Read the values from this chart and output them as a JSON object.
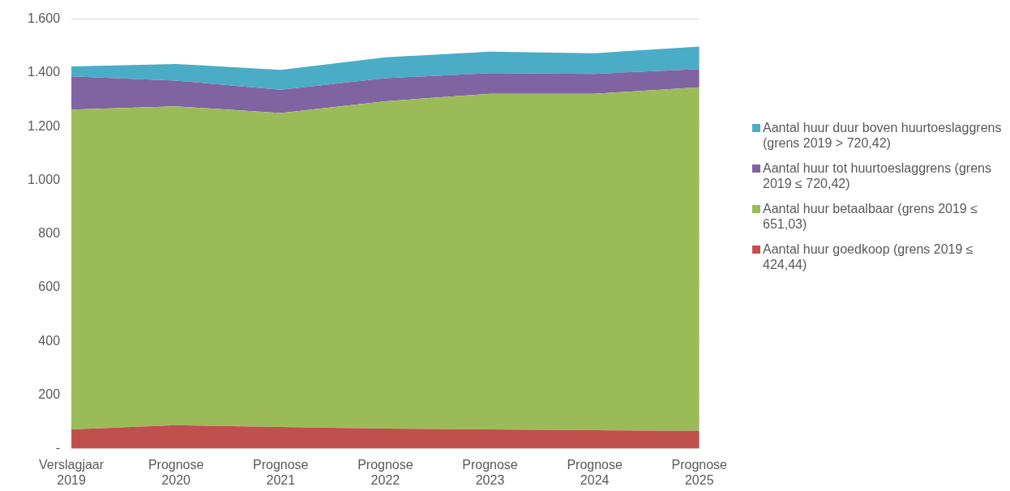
{
  "chart_data": {
    "type": "area",
    "stacked": true,
    "categories": [
      "Verslagjaar 2019",
      "Prognose 2020",
      "Prognose 2021",
      "Prognose 2022",
      "Prognose 2023",
      "Prognose 2024",
      "Prognose 2025"
    ],
    "series": [
      {
        "name": "Aantal huur goedkoop (grens 2019 ≤ 424,44)",
        "color": "#c0504d",
        "values": [
          71,
          87,
          80,
          74,
          71,
          68,
          66
        ]
      },
      {
        "name": "Aantal huur betaalbaar (grens 2019 ≤ 651,03)",
        "color": "#9bbb59",
        "values": [
          1192,
          1188,
          1170,
          1220,
          1251,
          1254,
          1280
        ]
      },
      {
        "name": "Aantal huur tot huurtoeslaggrens (grens 2019 ≤ 720,42)",
        "color": "#8064a2",
        "values": [
          124,
          96,
          87,
          86,
          77,
          74,
          68
        ]
      },
      {
        "name": "Aantal huur duur boven huurtoeslaggrens (grens 2019 > 720,42)",
        "color": "#4bacc6",
        "values": [
          37,
          62,
          74,
          78,
          80,
          77,
          84
        ]
      }
    ],
    "ylim": [
      0,
      1600
    ],
    "yticks": [
      {
        "value": 0,
        "label": "-"
      },
      {
        "value": 200,
        "label": "200"
      },
      {
        "value": 400,
        "label": "400"
      },
      {
        "value": 600,
        "label": "600"
      },
      {
        "value": 800,
        "label": "800"
      },
      {
        "value": 1000,
        "label": "1.000"
      },
      {
        "value": 1200,
        "label": "1.200"
      },
      {
        "value": 1400,
        "label": "1.400"
      },
      {
        "value": 1600,
        "label": "1.600"
      }
    ],
    "grid": "y",
    "legend": "right"
  }
}
